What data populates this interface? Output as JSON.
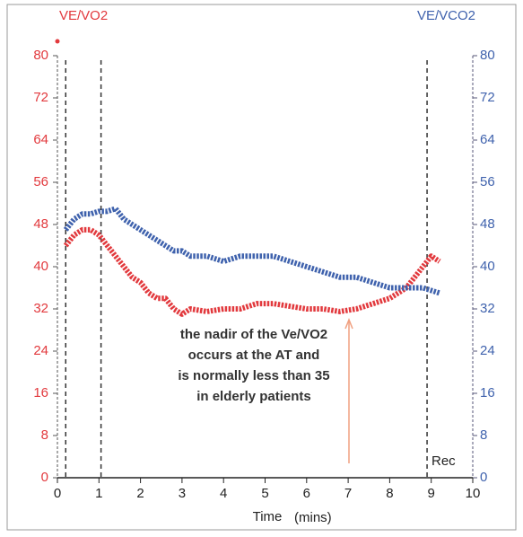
{
  "chart_data": {
    "type": "line",
    "x": [
      0.2,
      0.4,
      0.6,
      0.8,
      1.0,
      1.2,
      1.4,
      1.6,
      1.8,
      2.0,
      2.2,
      2.4,
      2.6,
      2.8,
      3.0,
      3.2,
      3.6,
      4.0,
      4.4,
      4.8,
      5.2,
      5.6,
      6.0,
      6.4,
      6.8,
      7.2,
      7.6,
      8.0,
      8.4,
      8.8,
      9.0,
      9.2
    ],
    "series": [
      {
        "name": "VE/VO2",
        "color": "#e2393d",
        "axis": "y",
        "values": [
          44,
          46,
          47,
          47,
          46,
          44,
          42,
          40,
          38,
          37,
          35,
          34,
          34,
          32,
          31,
          32,
          31.5,
          32,
          32,
          33,
          33,
          32.5,
          32,
          32,
          31.5,
          32,
          33,
          34,
          36,
          40,
          42,
          41
        ]
      },
      {
        "name": "VE/VCO2",
        "color": "#3f62ad",
        "axis": "y2",
        "values": [
          47,
          49,
          50,
          50,
          50.5,
          50.5,
          51,
          49,
          48,
          47,
          46,
          45,
          44,
          43,
          43,
          42,
          42,
          41,
          42,
          42,
          42,
          41,
          40,
          39,
          38,
          38,
          37,
          36,
          36,
          36,
          35.5,
          35
        ]
      }
    ],
    "vlines": [
      0.2,
      1.05,
      8.9
    ],
    "xlim": [
      0,
      10
    ],
    "xticks": [
      0,
      1,
      2,
      3,
      4,
      5,
      6,
      7,
      8,
      9,
      10
    ],
    "ylim": [
      0,
      80
    ],
    "yticks": [
      0,
      8,
      16,
      24,
      32,
      40,
      48,
      56,
      64,
      72,
      80
    ],
    "y2lim": [
      0,
      80
    ],
    "y2ticks": [
      0,
      8,
      16,
      24,
      32,
      40,
      48,
      56,
      64,
      72,
      80
    ],
    "x_label": "Time",
    "x_unit": "(mins)",
    "rec_label": "Rec",
    "annotation": [
      "the nadir of the Ve/VO2",
      "occurs at the AT and",
      "is normally less than 35",
      "in elderly patients"
    ]
  }
}
